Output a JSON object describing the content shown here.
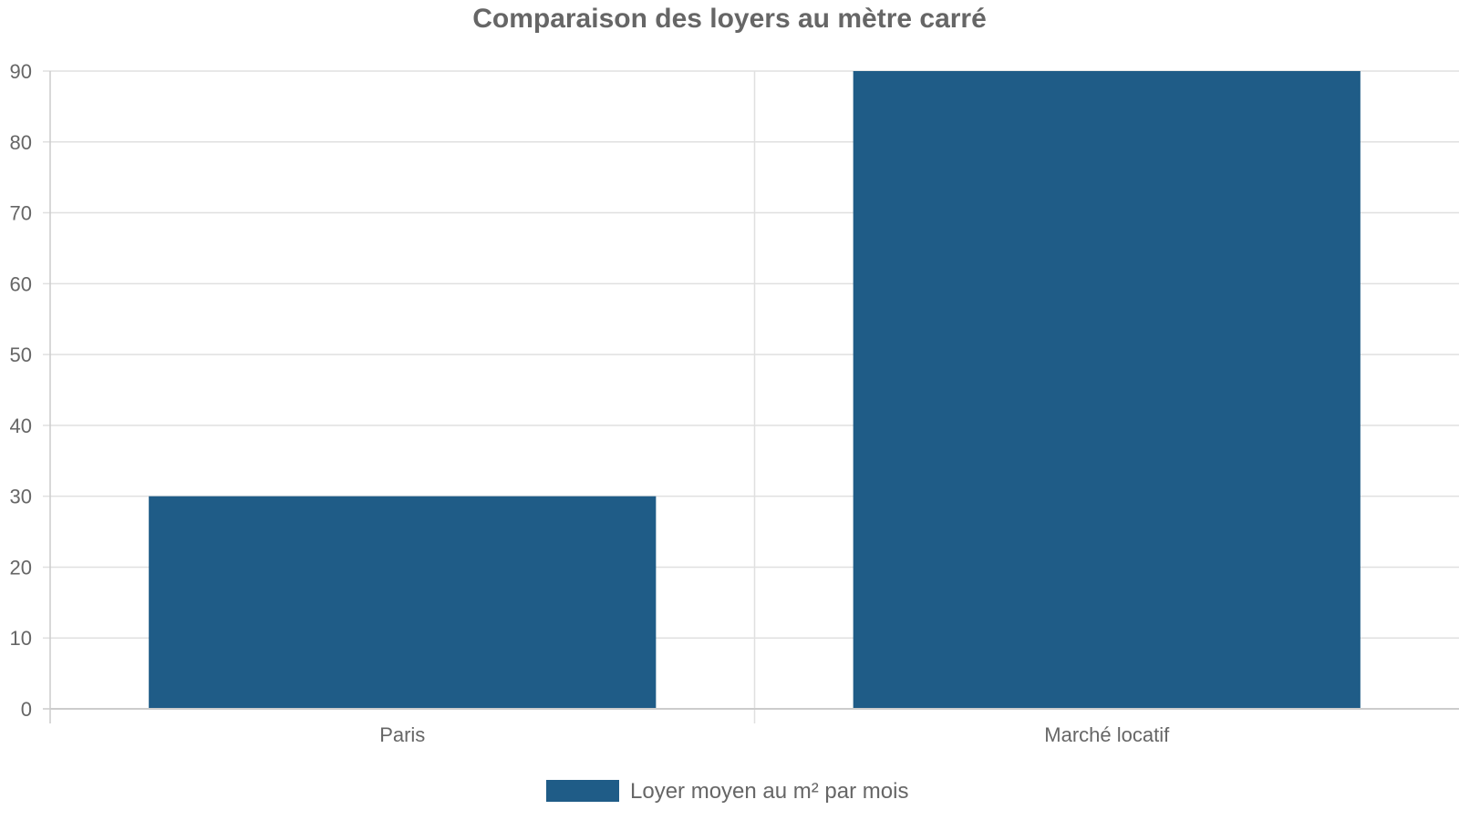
{
  "chart_data": {
    "type": "bar",
    "title": "Comparaison des loyers au mètre carré",
    "categories": [
      "Paris",
      "Marché locatif"
    ],
    "series": [
      {
        "name": "Loyer moyen au m² par mois",
        "values": [
          30,
          90
        ],
        "color": "#1f5c87"
      }
    ],
    "xlabel": "",
    "ylabel": "",
    "ylim": [
      0,
      90
    ],
    "yticks": [
      0,
      10,
      20,
      30,
      40,
      50,
      60,
      70,
      80,
      90
    ],
    "grid": true,
    "legend_position": "bottom"
  },
  "colors": {
    "text": "#666666",
    "grid": "#e0e0e0",
    "axis": "#cccccc"
  }
}
